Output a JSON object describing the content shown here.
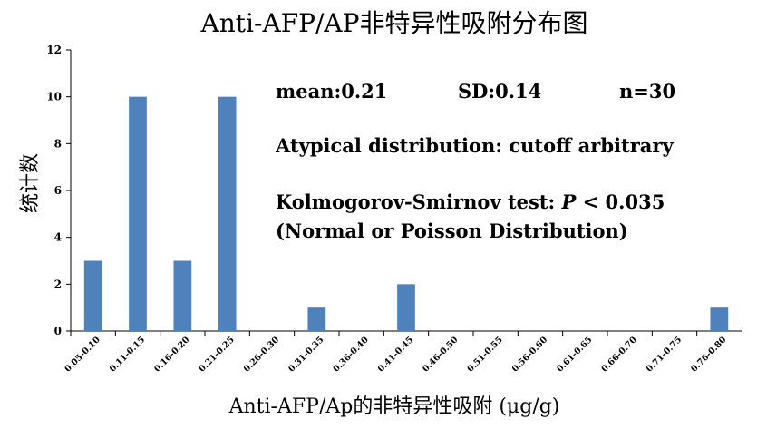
{
  "chart_data": {
    "type": "bar",
    "title": "Anti-AFP/AP非特异性吸附分布图",
    "xlabel": "Anti-AFP/Ap的非特异性吸附 (μg/g)",
    "ylabel": "统计数",
    "ylim": [
      0,
      12
    ],
    "yticks": [
      "0",
      "2",
      "4",
      "6",
      "8",
      "10",
      "12"
    ],
    "grid": false,
    "color": "#4f81bd",
    "categories": [
      "0.05-0.10",
      "0.11-0.15",
      "0.16-0.20",
      "0.21-0.25",
      "0.26-0.30",
      "0.31-0.35",
      "0.36-0.40",
      "0.41-0.45",
      "0.46-0.50",
      "0.51-0.55",
      "0.56-0.60",
      "0.61-0.65",
      "0.66-0.70",
      "0.71-0.75",
      "0.76-0.80"
    ],
    "values": [
      3,
      10,
      3,
      10,
      0,
      1,
      0,
      2,
      0,
      0,
      0,
      0,
      0,
      0,
      1
    ],
    "annotations": {
      "mean": "mean:0.21",
      "sd": "SD:0.14",
      "n": "n=30",
      "distribution": "Atypical distribution: cutoff arbitrary",
      "ks_prefix": "Kolmogorov-Smirnov test: ",
      "ks_p": "P",
      "ks_value": " < 0.035",
      "ks_note": "(Normal or Poisson Distribution)"
    }
  }
}
